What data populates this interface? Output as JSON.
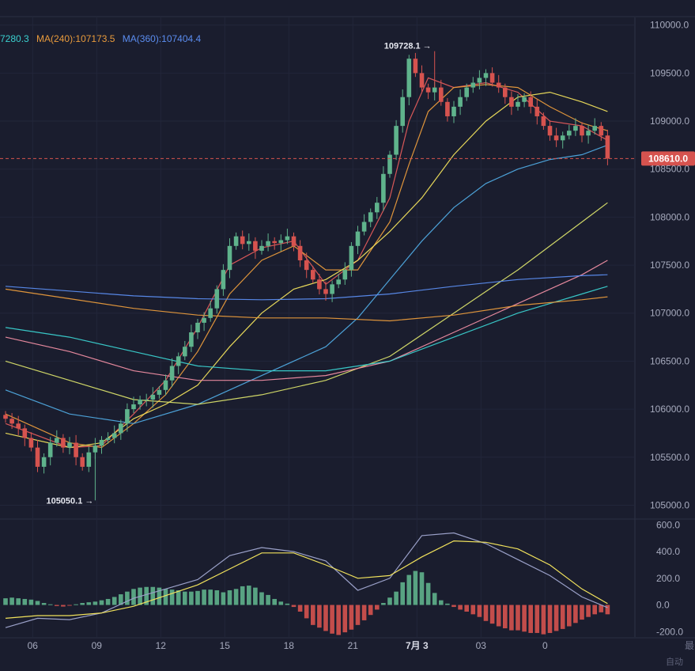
{
  "chart_data": {
    "type": "candlestick",
    "ma_legend": [
      {
        "text": "7280.3",
        "color": "#3ad0cf"
      },
      {
        "text": "MA(240):107173.5",
        "color": "#e99b3c"
      },
      {
        "text": "MA(360):107404.4",
        "color": "#5b8df0"
      }
    ],
    "price_axis": {
      "ticks": [
        105000,
        105500,
        106000,
        106500,
        107000,
        107500,
        108000,
        108500,
        109000,
        109500,
        110000
      ],
      "tick_labels": [
        "105000.0",
        "105500.0",
        "106000.0",
        "106500.0",
        "107000.0",
        "107500.0",
        "108000.0",
        "108500.0",
        "109000.0",
        "109500.0",
        "110000.0"
      ],
      "ylim": [
        104880,
        110080
      ]
    },
    "macd_axis": {
      "ticks": [
        600,
        400,
        200,
        0,
        -200
      ],
      "tick_labels": [
        "600.0",
        "400.0",
        "200.0",
        "0.0",
        "-200.0"
      ],
      "ylim": [
        -240,
        620
      ]
    },
    "x_axis": {
      "ticks": [
        {
          "label": "06",
          "idx": 3
        },
        {
          "label": "09",
          "idx": 13
        },
        {
          "label": "12",
          "idx": 23
        },
        {
          "label": "15",
          "idx": 33
        },
        {
          "label": "18",
          "idx": 43
        },
        {
          "label": "21",
          "idx": 53
        },
        {
          "label": "7月 3",
          "idx": 63
        },
        {
          "label": "03",
          "idx": 73
        },
        {
          "label": "0",
          "idx": 83
        }
      ]
    },
    "current_price": {
      "text": "108610.0",
      "value": 108610.0
    },
    "annotations": [
      {
        "text": "109728.1 →",
        "value": 109728.1,
        "idx": 67
      },
      {
        "text": "105050.1 →",
        "value": 105050.1,
        "idx": 14
      }
    ],
    "watermark": "最",
    "footer_text": "自动",
    "closes": [
      105900,
      105850,
      105800,
      105700,
      105600,
      105400,
      105500,
      105650,
      105700,
      105600,
      105650,
      105500,
      105400,
      105550,
      105620,
      105680,
      105700,
      105750,
      105850,
      106000,
      106050,
      106100,
      106100,
      106150,
      106200,
      106300,
      106450,
      106550,
      106650,
      106800,
      106900,
      106950,
      107050,
      107250,
      107450,
      107700,
      107800,
      107720,
      107750,
      107650,
      107700,
      107750,
      107730,
      107760,
      107800,
      107700,
      107550,
      107450,
      107350,
      107250,
      107200,
      107300,
      107350,
      107450,
      107700,
      107850,
      107950,
      108050,
      108150,
      108450,
      108650,
      108950,
      109250,
      109650,
      109500,
      109350,
      109300,
      109350,
      109200,
      109050,
      109150,
      109250,
      109350,
      109400,
      109450,
      109500,
      109400,
      109350,
      109250,
      109150,
      109200,
      109250,
      109150,
      109050,
      108950,
      108850,
      108800,
      108850,
      108900,
      108950,
      108850,
      108900,
      108950,
      108850,
      108610
    ],
    "ma_lines": [
      {
        "name": "MA-a",
        "color": "#e25b5b",
        "values": [
          [
            0,
            105850
          ],
          [
            10,
            105600
          ],
          [
            15,
            105620
          ],
          [
            20,
            105950
          ],
          [
            25,
            106300
          ],
          [
            30,
            106850
          ],
          [
            35,
            107500
          ],
          [
            40,
            107680
          ],
          [
            45,
            107750
          ],
          [
            50,
            107300
          ],
          [
            55,
            107550
          ],
          [
            60,
            108200
          ],
          [
            63,
            109000
          ],
          [
            66,
            109450
          ],
          [
            70,
            109350
          ],
          [
            75,
            109400
          ],
          [
            80,
            109300
          ],
          [
            85,
            109000
          ],
          [
            90,
            108950
          ],
          [
            94,
            108800
          ]
        ]
      },
      {
        "name": "MA-b",
        "color": "#e99b3c",
        "values": [
          [
            0,
            105950
          ],
          [
            10,
            105650
          ],
          [
            15,
            105600
          ],
          [
            20,
            105850
          ],
          [
            25,
            106150
          ],
          [
            30,
            106600
          ],
          [
            35,
            107200
          ],
          [
            40,
            107550
          ],
          [
            45,
            107700
          ],
          [
            50,
            107450
          ],
          [
            55,
            107450
          ],
          [
            60,
            107950
          ],
          [
            63,
            108550
          ],
          [
            66,
            109100
          ],
          [
            70,
            109350
          ],
          [
            75,
            109380
          ],
          [
            80,
            109350
          ],
          [
            85,
            109150
          ],
          [
            90,
            108980
          ],
          [
            94,
            108900
          ]
        ]
      },
      {
        "name": "MA-c",
        "color": "#f1e25c",
        "values": [
          [
            0,
            105750
          ],
          [
            10,
            105600
          ],
          [
            15,
            105650
          ],
          [
            20,
            105900
          ],
          [
            25,
            106050
          ],
          [
            30,
            106250
          ],
          [
            35,
            106650
          ],
          [
            40,
            107000
          ],
          [
            45,
            107250
          ],
          [
            50,
            107350
          ],
          [
            55,
            107550
          ],
          [
            60,
            107850
          ],
          [
            65,
            108200
          ],
          [
            70,
            108650
          ],
          [
            75,
            109000
          ],
          [
            80,
            109250
          ],
          [
            85,
            109300
          ],
          [
            90,
            109200
          ],
          [
            94,
            109100
          ]
        ]
      },
      {
        "name": "MA-d",
        "color": "#4fa9e0",
        "values": [
          [
            0,
            106200
          ],
          [
            10,
            105950
          ],
          [
            20,
            105850
          ],
          [
            30,
            106050
          ],
          [
            40,
            106350
          ],
          [
            50,
            106650
          ],
          [
            55,
            106950
          ],
          [
            60,
            107350
          ],
          [
            65,
            107750
          ],
          [
            70,
            108100
          ],
          [
            75,
            108350
          ],
          [
            80,
            108500
          ],
          [
            85,
            108600
          ],
          [
            90,
            108650
          ],
          [
            94,
            108750
          ]
        ]
      },
      {
        "name": "MA-e",
        "color": "#d9e06a",
        "values": [
          [
            0,
            106500
          ],
          [
            10,
            106300
          ],
          [
            20,
            106100
          ],
          [
            30,
            106050
          ],
          [
            40,
            106150
          ],
          [
            50,
            106300
          ],
          [
            60,
            106550
          ],
          [
            70,
            107000
          ],
          [
            80,
            107450
          ],
          [
            90,
            107950
          ],
          [
            94,
            108150
          ]
        ]
      },
      {
        "name": "MA-f",
        "color": "#f08ea3",
        "values": [
          [
            0,
            106750
          ],
          [
            10,
            106600
          ],
          [
            20,
            106400
          ],
          [
            30,
            106300
          ],
          [
            40,
            106300
          ],
          [
            50,
            106350
          ],
          [
            60,
            106500
          ],
          [
            70,
            106800
          ],
          [
            80,
            107100
          ],
          [
            90,
            107400
          ],
          [
            94,
            107550
          ]
        ]
      },
      {
        "name": "MA-g",
        "color": "#3ad0cf",
        "values": [
          [
            0,
            106850
          ],
          [
            10,
            106750
          ],
          [
            20,
            106600
          ],
          [
            30,
            106450
          ],
          [
            40,
            106400
          ],
          [
            50,
            106400
          ],
          [
            60,
            106500
          ],
          [
            70,
            106750
          ],
          [
            80,
            107000
          ],
          [
            90,
            107200
          ],
          [
            94,
            107280
          ]
        ]
      },
      {
        "name": "MA(240)",
        "color": "#e99b3c",
        "values": [
          [
            0,
            107250
          ],
          [
            10,
            107150
          ],
          [
            20,
            107050
          ],
          [
            30,
            106980
          ],
          [
            40,
            106950
          ],
          [
            50,
            106950
          ],
          [
            60,
            106920
          ],
          [
            70,
            106980
          ],
          [
            80,
            107080
          ],
          [
            90,
            107140
          ],
          [
            94,
            107170
          ]
        ]
      },
      {
        "name": "MA(360)",
        "color": "#5b8df0",
        "values": [
          [
            0,
            107280
          ],
          [
            10,
            107230
          ],
          [
            20,
            107180
          ],
          [
            30,
            107150
          ],
          [
            40,
            107140
          ],
          [
            50,
            107150
          ],
          [
            60,
            107200
          ],
          [
            70,
            107280
          ],
          [
            80,
            107350
          ],
          [
            90,
            107390
          ],
          [
            94,
            107400
          ]
        ]
      }
    ],
    "macd": {
      "histogram": [
        50,
        55,
        50,
        45,
        40,
        30,
        15,
        5,
        -8,
        -12,
        -5,
        5,
        15,
        20,
        25,
        35,
        45,
        60,
        80,
        100,
        120,
        130,
        135,
        135,
        130,
        120,
        115,
        110,
        100,
        100,
        105,
        115,
        115,
        110,
        95,
        110,
        120,
        140,
        145,
        130,
        95,
        75,
        45,
        25,
        10,
        -15,
        -50,
        -100,
        -150,
        -170,
        -195,
        -215,
        -225,
        -205,
        -185,
        -150,
        -115,
        -75,
        -35,
        15,
        55,
        100,
        170,
        225,
        255,
        245,
        165,
        90,
        35,
        10,
        -15,
        -35,
        -50,
        -70,
        -90,
        -120,
        -140,
        -160,
        -175,
        -190,
        -190,
        -200,
        -210,
        -210,
        -220,
        -210,
        -195,
        -180,
        -160,
        -135,
        -110,
        -90,
        -70,
        -55,
        -70
      ],
      "lines": [
        {
          "name": "DIF",
          "color": "#9aa0c8",
          "values": [
            [
              0,
              -170
            ],
            [
              5,
              -100
            ],
            [
              10,
              -110
            ],
            [
              15,
              -60
            ],
            [
              20,
              50
            ],
            [
              25,
              120
            ],
            [
              30,
              190
            ],
            [
              35,
              370
            ],
            [
              40,
              430
            ],
            [
              45,
              400
            ],
            [
              50,
              330
            ],
            [
              55,
              110
            ],
            [
              60,
              200
            ],
            [
              65,
              520
            ],
            [
              70,
              540
            ],
            [
              75,
              460
            ],
            [
              80,
              340
            ],
            [
              85,
              220
            ],
            [
              90,
              60
            ],
            [
              94,
              -20
            ]
          ]
        },
        {
          "name": "DEA",
          "color": "#f1e25c",
          "values": [
            [
              0,
              -100
            ],
            [
              5,
              -80
            ],
            [
              10,
              -80
            ],
            [
              15,
              -60
            ],
            [
              20,
              -10
            ],
            [
              25,
              70
            ],
            [
              30,
              150
            ],
            [
              35,
              270
            ],
            [
              40,
              390
            ],
            [
              45,
              390
            ],
            [
              50,
              300
            ],
            [
              55,
              200
            ],
            [
              60,
              220
            ],
            [
              65,
              360
            ],
            [
              70,
              480
            ],
            [
              75,
              470
            ],
            [
              80,
              420
            ],
            [
              85,
              300
            ],
            [
              90,
              120
            ],
            [
              94,
              10
            ]
          ]
        }
      ]
    }
  }
}
